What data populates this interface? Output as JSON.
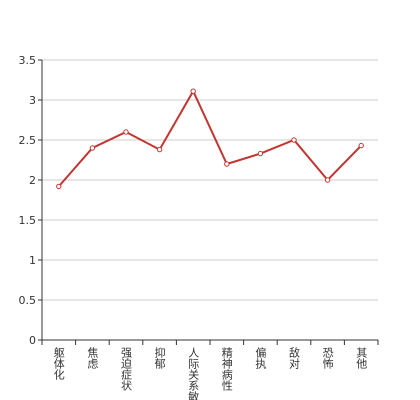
{
  "chart_data": {
    "type": "line",
    "categories": [
      "躯体化",
      "焦虑",
      "强迫症状",
      "抑郁",
      "人际关系敏感",
      "精神病性",
      "偏执",
      "敌对",
      "恐怖",
      "其他"
    ],
    "values": [
      1.92,
      2.4,
      2.6,
      2.38,
      3.11,
      2.2,
      2.33,
      2.5,
      2.0,
      2.43
    ],
    "color": "#c23531",
    "ylim": [
      0,
      3.5
    ],
    "yticks": [
      0,
      0.5,
      1,
      1.5,
      2,
      2.5,
      3,
      3.5
    ],
    "grid": true
  }
}
